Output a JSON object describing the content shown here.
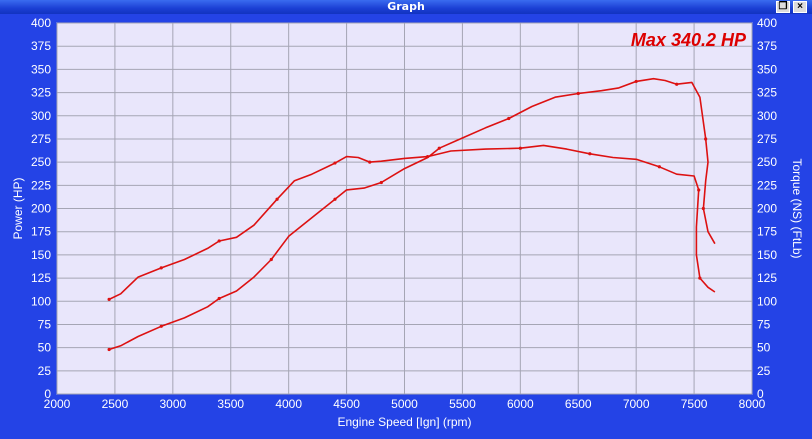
{
  "window": {
    "title": "Graph",
    "restore_icon": "restore-icon",
    "close_icon": "close-icon",
    "close_glyph": "×",
    "restore_glyph": "❐"
  },
  "colors": {
    "background": "#2443e6",
    "plot_area": "#e9e6fb",
    "grid": "#a5a5b4",
    "curve": "#dd1111",
    "axis_text": "#ffffff",
    "annotation": "#dd0000"
  },
  "chart_data": {
    "type": "line",
    "title": "",
    "annotation": "Max 340.2 HP",
    "xlabel": "Engine Speed [Ign] (rpm)",
    "ylabel_left": "Power (HP)",
    "ylabel_right": "Torque (NS) (FtLb)",
    "xlim": [
      2000,
      8000
    ],
    "ylim": [
      0,
      400
    ],
    "x_ticks": [
      2000,
      2500,
      3000,
      3500,
      4000,
      4500,
      5000,
      5500,
      6000,
      6500,
      7000,
      7500,
      8000
    ],
    "y_ticks": [
      0,
      25,
      50,
      75,
      100,
      125,
      150,
      175,
      200,
      225,
      250,
      275,
      300,
      325,
      350,
      375,
      400
    ],
    "grid": true,
    "series": [
      {
        "name": "Power (HP)",
        "points": [
          [
            2450,
            48
          ],
          [
            2550,
            52
          ],
          [
            2700,
            62
          ],
          [
            2900,
            73
          ],
          [
            3100,
            82
          ],
          [
            3300,
            94
          ],
          [
            3400,
            103
          ],
          [
            3550,
            111
          ],
          [
            3700,
            126
          ],
          [
            3850,
            145
          ],
          [
            4000,
            170
          ],
          [
            4200,
            190
          ],
          [
            4400,
            210
          ],
          [
            4500,
            220
          ],
          [
            4650,
            222
          ],
          [
            4800,
            228
          ],
          [
            5000,
            243
          ],
          [
            5200,
            255
          ],
          [
            5300,
            265
          ],
          [
            5500,
            276
          ],
          [
            5700,
            287
          ],
          [
            5900,
            297
          ],
          [
            6100,
            310
          ],
          [
            6300,
            320
          ],
          [
            6500,
            324
          ],
          [
            6700,
            327
          ],
          [
            6850,
            330
          ],
          [
            7000,
            337
          ],
          [
            7150,
            340
          ],
          [
            7250,
            338
          ],
          [
            7350,
            334
          ],
          [
            7480,
            336
          ],
          [
            7550,
            320
          ],
          [
            7600,
            275
          ],
          [
            7620,
            250
          ],
          [
            7600,
            230
          ],
          [
            7580,
            200
          ],
          [
            7620,
            175
          ],
          [
            7680,
            162
          ]
        ]
      },
      {
        "name": "Torque (FtLb)",
        "points": [
          [
            2450,
            102
          ],
          [
            2550,
            108
          ],
          [
            2700,
            126
          ],
          [
            2900,
            136
          ],
          [
            3100,
            145
          ],
          [
            3300,
            157
          ],
          [
            3400,
            165
          ],
          [
            3550,
            169
          ],
          [
            3700,
            182
          ],
          [
            3900,
            210
          ],
          [
            4050,
            230
          ],
          [
            4200,
            237
          ],
          [
            4400,
            249
          ],
          [
            4500,
            256
          ],
          [
            4600,
            255
          ],
          [
            4700,
            250
          ],
          [
            4800,
            251
          ],
          [
            5000,
            254
          ],
          [
            5200,
            256
          ],
          [
            5400,
            262
          ],
          [
            5700,
            264
          ],
          [
            6000,
            265
          ],
          [
            6200,
            268
          ],
          [
            6400,
            264
          ],
          [
            6600,
            259
          ],
          [
            6800,
            255
          ],
          [
            7000,
            253
          ],
          [
            7200,
            245
          ],
          [
            7350,
            237
          ],
          [
            7500,
            235
          ],
          [
            7540,
            220
          ],
          [
            7520,
            180
          ],
          [
            7520,
            150
          ],
          [
            7550,
            125
          ],
          [
            7620,
            115
          ],
          [
            7680,
            110
          ]
        ]
      }
    ]
  }
}
